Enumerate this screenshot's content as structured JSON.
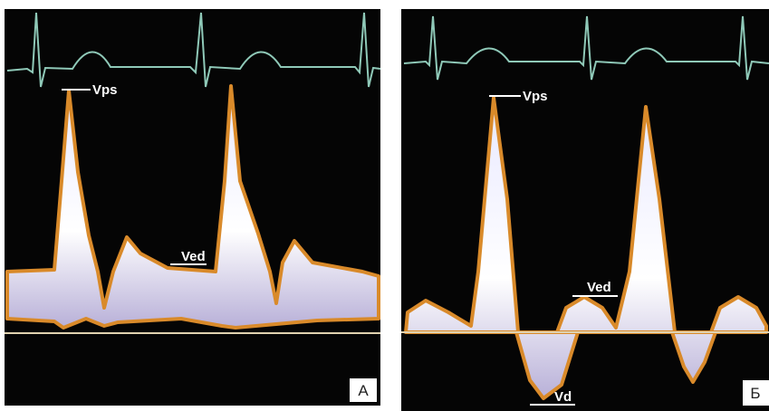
{
  "panels": [
    {
      "vps": "Vps",
      "ved": "Ved",
      "letter": "А"
    },
    {
      "vps": "Vps",
      "ved": "Ved",
      "vd": "Vd",
      "letter": "Б"
    }
  ]
}
